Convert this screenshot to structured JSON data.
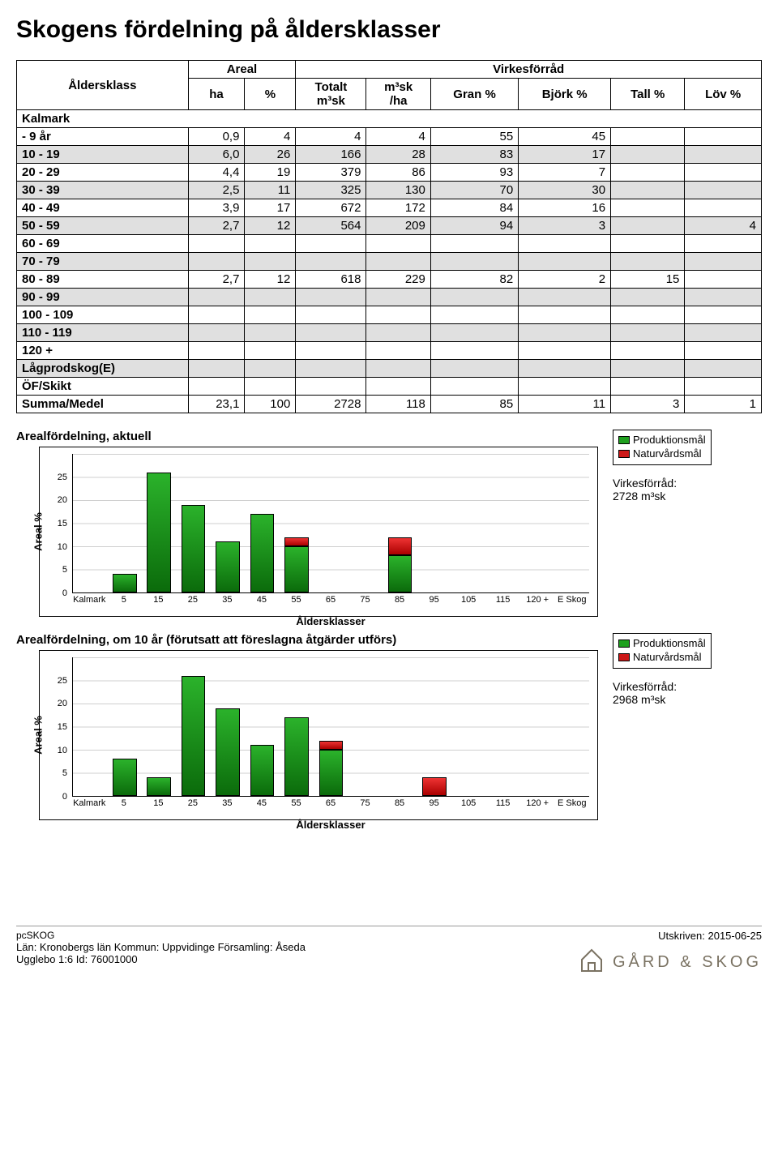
{
  "title": "Skogens fördelning på åldersklasser",
  "table": {
    "header_top": {
      "aldersklass": "Åldersklass",
      "areal": "Areal",
      "virkesforrad": "Virkesförråd"
    },
    "header_sub": {
      "ha": "ha",
      "pct": "%",
      "totalt": "Totalt\nm³sk",
      "m3sk_ha": "m³sk\n/ha",
      "gran": "Gran %",
      "bjork": "Björk %",
      "tall": "Tall %",
      "lov": "Löv %"
    },
    "section": "Kalmark",
    "rows": [
      {
        "label": "  -  9 år",
        "ha": "0,9",
        "pct": "4",
        "totalt": "4",
        "m3skha": "4",
        "gran": "55",
        "bjork": "45",
        "tall": "",
        "lov": ""
      },
      {
        "label": "10 - 19",
        "ha": "6,0",
        "pct": "26",
        "totalt": "166",
        "m3skha": "28",
        "gran": "83",
        "bjork": "17",
        "tall": "",
        "lov": ""
      },
      {
        "label": "20 - 29",
        "ha": "4,4",
        "pct": "19",
        "totalt": "379",
        "m3skha": "86",
        "gran": "93",
        "bjork": "7",
        "tall": "",
        "lov": ""
      },
      {
        "label": "30 - 39",
        "ha": "2,5",
        "pct": "11",
        "totalt": "325",
        "m3skha": "130",
        "gran": "70",
        "bjork": "30",
        "tall": "",
        "lov": ""
      },
      {
        "label": "40 - 49",
        "ha": "3,9",
        "pct": "17",
        "totalt": "672",
        "m3skha": "172",
        "gran": "84",
        "bjork": "16",
        "tall": "",
        "lov": ""
      },
      {
        "label": "50 - 59",
        "ha": "2,7",
        "pct": "12",
        "totalt": "564",
        "m3skha": "209",
        "gran": "94",
        "bjork": "3",
        "tall": "",
        "lov": "4"
      },
      {
        "label": "60 - 69",
        "ha": "",
        "pct": "",
        "totalt": "",
        "m3skha": "",
        "gran": "",
        "bjork": "",
        "tall": "",
        "lov": ""
      },
      {
        "label": "70 - 79",
        "ha": "",
        "pct": "",
        "totalt": "",
        "m3skha": "",
        "gran": "",
        "bjork": "",
        "tall": "",
        "lov": ""
      },
      {
        "label": "80 - 89",
        "ha": "2,7",
        "pct": "12",
        "totalt": "618",
        "m3skha": "229",
        "gran": "82",
        "bjork": "2",
        "tall": "15",
        "lov": ""
      },
      {
        "label": "90 - 99",
        "ha": "",
        "pct": "",
        "totalt": "",
        "m3skha": "",
        "gran": "",
        "bjork": "",
        "tall": "",
        "lov": ""
      },
      {
        "label": "100 - 109",
        "ha": "",
        "pct": "",
        "totalt": "",
        "m3skha": "",
        "gran": "",
        "bjork": "",
        "tall": "",
        "lov": ""
      },
      {
        "label": "110 - 119",
        "ha": "",
        "pct": "",
        "totalt": "",
        "m3skha": "",
        "gran": "",
        "bjork": "",
        "tall": "",
        "lov": ""
      },
      {
        "label": "120 +",
        "ha": "",
        "pct": "",
        "totalt": "",
        "m3skha": "",
        "gran": "",
        "bjork": "",
        "tall": "",
        "lov": ""
      },
      {
        "label": "Lågprodskog(E)",
        "ha": "",
        "pct": "",
        "totalt": "",
        "m3skha": "",
        "gran": "",
        "bjork": "",
        "tall": "",
        "lov": ""
      },
      {
        "label": "ÖF/Skikt",
        "ha": "",
        "pct": "",
        "totalt": "",
        "m3skha": "",
        "gran": "",
        "bjork": "",
        "tall": "",
        "lov": ""
      }
    ],
    "sum_label": "Summa/Medel",
    "sum": {
      "ha": "23,1",
      "pct": "100",
      "totalt": "2728",
      "m3skha": "118",
      "gran": "85",
      "bjork": "11",
      "tall": "3",
      "lov": "1"
    }
  },
  "chart1": {
    "title": "Arealfördelning, aktuell",
    "ylabel": "Areal %",
    "xlabel": "Åldersklasser",
    "ymax": 30,
    "yticks": [
      0,
      5,
      10,
      15,
      20,
      25
    ],
    "categories": [
      "Kalmark",
      "5",
      "15",
      "25",
      "35",
      "45",
      "55",
      "65",
      "75",
      "85",
      "95",
      "105",
      "115",
      "120 +",
      "E Skog"
    ],
    "bars": [
      {
        "prod": 0,
        "natur": 0
      },
      {
        "prod": 4,
        "natur": 0
      },
      {
        "prod": 26,
        "natur": 0
      },
      {
        "prod": 19,
        "natur": 0
      },
      {
        "prod": 11,
        "natur": 0
      },
      {
        "prod": 17,
        "natur": 0
      },
      {
        "prod": 10,
        "natur": 2
      },
      {
        "prod": 0,
        "natur": 0
      },
      {
        "prod": 0,
        "natur": 0
      },
      {
        "prod": 8,
        "natur": 4
      },
      {
        "prod": 0,
        "natur": 0
      },
      {
        "prod": 0,
        "natur": 0
      },
      {
        "prod": 0,
        "natur": 0
      },
      {
        "prod": 0,
        "natur": 0
      },
      {
        "prod": 0,
        "natur": 0
      }
    ],
    "legend": {
      "prod": "Produktionsmål",
      "natur": "Naturvårdsmål"
    },
    "stock_label": "Virkesförråd:",
    "stock_value": "2728 m³sk"
  },
  "chart2": {
    "title": "Arealfördelning, om 10 år (förutsatt att föreslagna åtgärder utförs)",
    "ylabel": "Areal %",
    "xlabel": "Åldersklasser",
    "ymax": 30,
    "yticks": [
      0,
      5,
      10,
      15,
      20,
      25
    ],
    "categories": [
      "Kalmark",
      "5",
      "15",
      "25",
      "35",
      "45",
      "55",
      "65",
      "75",
      "85",
      "95",
      "105",
      "115",
      "120 +",
      "E Skog"
    ],
    "bars": [
      {
        "prod": 0,
        "natur": 0
      },
      {
        "prod": 8,
        "natur": 0
      },
      {
        "prod": 4,
        "natur": 0
      },
      {
        "prod": 26,
        "natur": 0
      },
      {
        "prod": 19,
        "natur": 0
      },
      {
        "prod": 11,
        "natur": 0
      },
      {
        "prod": 17,
        "natur": 0
      },
      {
        "prod": 10,
        "natur": 2
      },
      {
        "prod": 0,
        "natur": 0
      },
      {
        "prod": 0,
        "natur": 0
      },
      {
        "prod": 0,
        "natur": 4
      },
      {
        "prod": 0,
        "natur": 0
      },
      {
        "prod": 0,
        "natur": 0
      },
      {
        "prod": 0,
        "natur": 0
      },
      {
        "prod": 0,
        "natur": 0
      }
    ],
    "legend": {
      "prod": "Produktionsmål",
      "natur": "Naturvårdsmål"
    },
    "stock_label": "Virkesförråd:",
    "stock_value": "2968 m³sk"
  },
  "footer": {
    "app": "pcSKOG",
    "line1": "Län: Kronobergs län  Kommun: Uppvidinge  Församling: Åseda",
    "line2": "Ugglebo 1:6 Id: 76001000",
    "printed": "Utskriven: 2015-06-25",
    "brand": "GÅRD & SKOG"
  }
}
